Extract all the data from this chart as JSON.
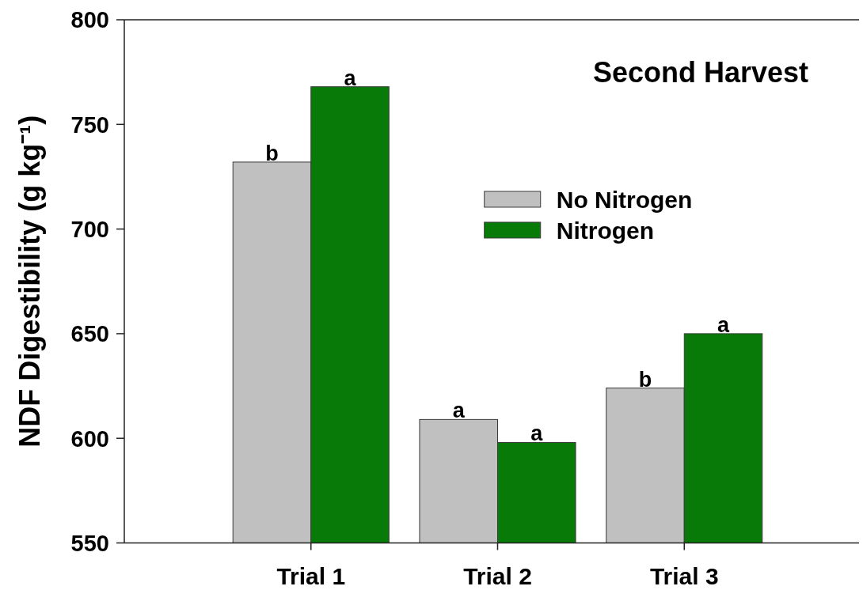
{
  "chart_data": {
    "type": "bar",
    "title": "Second Harvest",
    "ylabel": "NDF Digestibility (g kg⁻¹)",
    "categories": [
      "Trial 1",
      "Trial 2",
      "Trial 3"
    ],
    "series": [
      {
        "name": "No Nitrogen",
        "color": "#c0c0c0",
        "values": [
          732,
          609,
          624
        ],
        "value_labels": [
          "b",
          "a",
          "b"
        ]
      },
      {
        "name": "Nitrogen",
        "color": "#087a08",
        "values": [
          768,
          598,
          650
        ],
        "value_labels": [
          "a",
          "a",
          "a"
        ]
      }
    ],
    "ylim": [
      550,
      800
    ],
    "yticks": [
      550,
      600,
      650,
      700,
      750,
      800
    ],
    "legend": "top right"
  }
}
